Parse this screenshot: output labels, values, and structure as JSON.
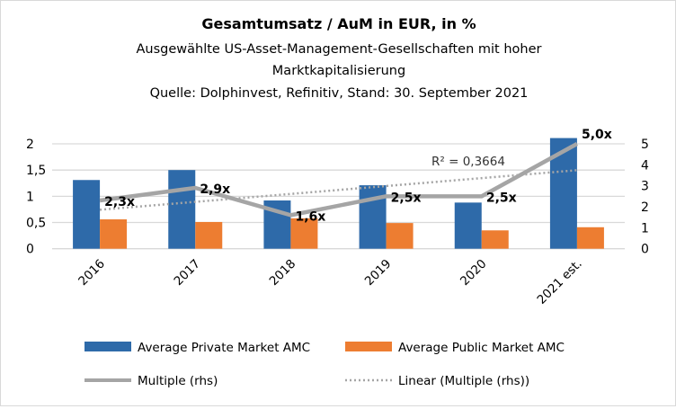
{
  "chart_data": {
    "type": "bar+line",
    "title": "Gesamtumsatz / AuM in EUR, in %",
    "subtitle_lines": [
      "Ausgewählte US-Asset-Management-Gesellschaften mit hoher",
      "Marktkapitalisierung",
      "Quelle: Dolphinvest, Refinitiv, Stand: 30. September 2021"
    ],
    "categories": [
      "2016",
      "2017",
      "2018",
      "2019",
      "2020",
      "2021 est."
    ],
    "left_axis": {
      "ylim": [
        0,
        2
      ],
      "ticks": [
        "0",
        "0,5",
        "1",
        "1,5",
        "2"
      ]
    },
    "right_axis": {
      "ylim": [
        0,
        5
      ],
      "ticks": [
        "0",
        "1",
        "2",
        "3",
        "4",
        "5"
      ]
    },
    "grid": true,
    "series": [
      {
        "name": "Average Private Market AMC",
        "type": "bar",
        "axis": "left",
        "color": "#2e6aa9",
        "values": [
          1.31,
          1.5,
          0.92,
          1.21,
          0.88,
          2.11
        ]
      },
      {
        "name": "Average Public Market AMC",
        "type": "bar",
        "axis": "left",
        "color": "#ed7d31",
        "values": [
          0.56,
          0.51,
          0.58,
          0.49,
          0.35,
          0.41
        ]
      },
      {
        "name": "Multiple (rhs)",
        "type": "line",
        "axis": "right",
        "color": "#a5a5a5",
        "values": [
          2.3,
          2.9,
          1.6,
          2.5,
          2.5,
          5.0
        ],
        "labels": [
          "2,3x",
          "2,9x",
          "1,6x",
          "2,5x",
          "2,5x",
          "5,0x"
        ]
      },
      {
        "name": "Linear (Multiple (rhs))",
        "type": "trendline",
        "axis": "right",
        "color": "#a5a5a5",
        "annotation": "R² = 0,3664"
      }
    ],
    "legend_position": "bottom"
  }
}
